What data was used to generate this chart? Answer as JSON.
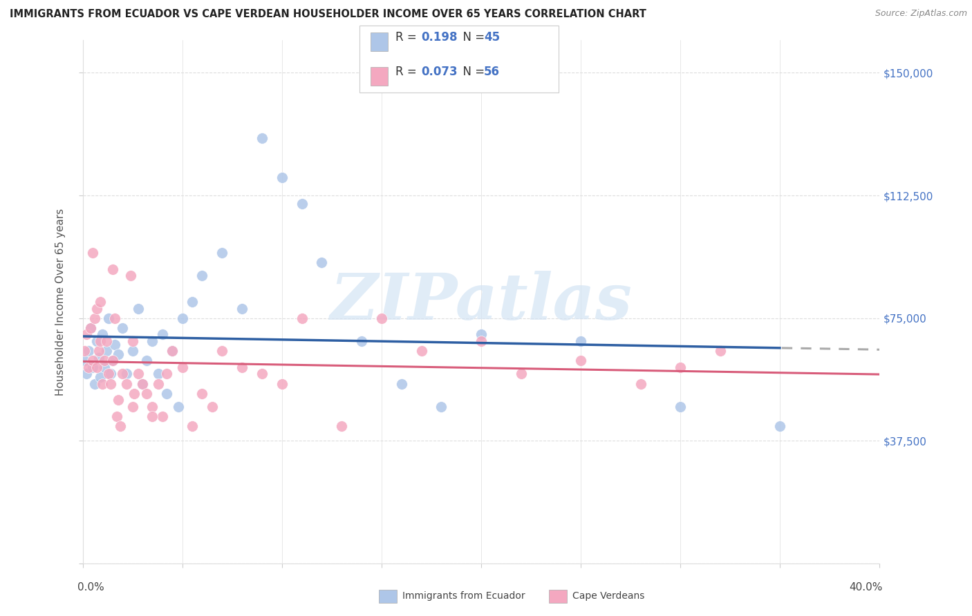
{
  "title": "IMMIGRANTS FROM ECUADOR VS CAPE VERDEAN HOUSEHOLDER INCOME OVER 65 YEARS CORRELATION CHART",
  "source": "Source: ZipAtlas.com",
  "ylabel": "Householder Income Over 65 years",
  "legend_label1": "Immigrants from Ecuador",
  "legend_label2": "Cape Verdeans",
  "xlim": [
    0.0,
    0.4
  ],
  "ylim": [
    0,
    160000
  ],
  "yticks": [
    0,
    37500,
    75000,
    112500,
    150000
  ],
  "ytick_labels": [
    "",
    "$37,500",
    "$75,000",
    "$112,500",
    "$150,000"
  ],
  "blue_scatter_color": "#aec6e8",
  "pink_scatter_color": "#f4a8c0",
  "blue_line_color": "#2e5fa3",
  "pink_line_color": "#d85c7a",
  "gray_dash_color": "#aaaaaa",
  "grid_color": "#dddddd",
  "watermark_color": "#d4e4f4",
  "R_ecuador": "0.198",
  "N_ecuador": "45",
  "R_capeverde": "0.073",
  "N_capeverde": "56",
  "ecuador_x": [
    0.001,
    0.002,
    0.003,
    0.004,
    0.005,
    0.006,
    0.007,
    0.008,
    0.009,
    0.01,
    0.011,
    0.012,
    0.013,
    0.014,
    0.015,
    0.016,
    0.018,
    0.02,
    0.022,
    0.025,
    0.028,
    0.03,
    0.032,
    0.035,
    0.038,
    0.04,
    0.042,
    0.045,
    0.048,
    0.05,
    0.055,
    0.06,
    0.07,
    0.08,
    0.09,
    0.1,
    0.11,
    0.12,
    0.14,
    0.16,
    0.18,
    0.2,
    0.25,
    0.3,
    0.35
  ],
  "ecuador_y": [
    62000,
    58000,
    65000,
    72000,
    60000,
    55000,
    68000,
    63000,
    57000,
    70000,
    60000,
    65000,
    75000,
    58000,
    62000,
    67000,
    64000,
    72000,
    58000,
    65000,
    78000,
    55000,
    62000,
    68000,
    58000,
    70000,
    52000,
    65000,
    48000,
    75000,
    80000,
    88000,
    95000,
    78000,
    130000,
    118000,
    110000,
    92000,
    68000,
    55000,
    48000,
    70000,
    68000,
    48000,
    42000
  ],
  "capeverde_x": [
    0.001,
    0.002,
    0.003,
    0.004,
    0.005,
    0.006,
    0.007,
    0.008,
    0.009,
    0.01,
    0.011,
    0.012,
    0.013,
    0.014,
    0.015,
    0.016,
    0.017,
    0.018,
    0.019,
    0.02,
    0.022,
    0.024,
    0.025,
    0.026,
    0.028,
    0.03,
    0.032,
    0.035,
    0.038,
    0.04,
    0.042,
    0.045,
    0.05,
    0.055,
    0.06,
    0.065,
    0.07,
    0.08,
    0.09,
    0.1,
    0.11,
    0.13,
    0.15,
    0.17,
    0.2,
    0.22,
    0.25,
    0.28,
    0.3,
    0.32,
    0.005,
    0.007,
    0.009,
    0.015,
    0.025,
    0.035
  ],
  "capeverde_y": [
    65000,
    70000,
    60000,
    72000,
    62000,
    75000,
    60000,
    65000,
    68000,
    55000,
    62000,
    68000,
    58000,
    55000,
    62000,
    75000,
    45000,
    50000,
    42000,
    58000,
    55000,
    88000,
    68000,
    52000,
    58000,
    55000,
    52000,
    48000,
    55000,
    45000,
    58000,
    65000,
    60000,
    42000,
    52000,
    48000,
    65000,
    60000,
    58000,
    55000,
    75000,
    42000,
    75000,
    65000,
    68000,
    58000,
    62000,
    55000,
    60000,
    65000,
    95000,
    78000,
    80000,
    90000,
    48000,
    45000
  ]
}
